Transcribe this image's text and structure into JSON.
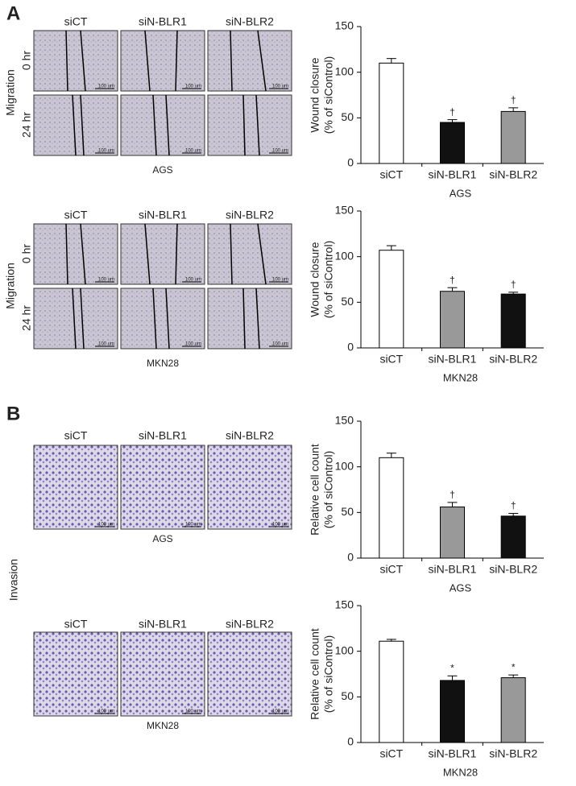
{
  "figure": {
    "panel_a": "A",
    "panel_b": "B",
    "conditions": [
      "siCT",
      "siN-BLR1",
      "siN-BLR2"
    ],
    "migration": "Migration",
    "times": [
      "0 hr",
      "24 hr"
    ],
    "invasion": "Invasion",
    "cell_lines": [
      "AGS",
      "MKN28"
    ],
    "scale_bar": "100 um"
  },
  "chart_data": [
    {
      "type": "bar",
      "y_label": [
        "Wound closure",
        "(% of siControl)"
      ],
      "x_label": "AGS",
      "categories": [
        "siCT",
        "siN-BLR1",
        "siN-BLR2"
      ],
      "values": [
        110,
        45,
        57
      ],
      "errors": [
        5,
        3,
        4
      ],
      "colors": [
        "#ffffff",
        "#111111",
        "#999999"
      ],
      "annotations": [
        null,
        "†",
        "†"
      ],
      "ylim": [
        0,
        150
      ],
      "yticks": [
        0,
        50,
        100,
        150
      ]
    },
    {
      "type": "bar",
      "y_label": [
        "Wound closure",
        "(% of siControl)"
      ],
      "x_label": "MKN28",
      "categories": [
        "siCT",
        "siN-BLR1",
        "siN-BLR2"
      ],
      "values": [
        107,
        62,
        59
      ],
      "errors": [
        5,
        4,
        2
      ],
      "colors": [
        "#ffffff",
        "#999999",
        "#111111"
      ],
      "annotations": [
        null,
        "†",
        "†"
      ],
      "ylim": [
        0,
        150
      ],
      "yticks": [
        0,
        50,
        100,
        150
      ]
    },
    {
      "type": "bar",
      "y_label": [
        "Relative cell count",
        "(% of siControl)"
      ],
      "x_label": "AGS",
      "categories": [
        "siCT",
        "siN-BLR1",
        "siN-BLR2"
      ],
      "values": [
        110,
        56,
        46
      ],
      "errors": [
        5,
        5,
        3
      ],
      "colors": [
        "#ffffff",
        "#999999",
        "#111111"
      ],
      "annotations": [
        null,
        "†",
        "†"
      ],
      "ylim": [
        0,
        150
      ],
      "yticks": [
        0,
        50,
        100,
        150
      ]
    },
    {
      "type": "bar",
      "y_label": [
        "Relative cell count",
        "(% of siControl)"
      ],
      "x_label": "MKN28",
      "categories": [
        "siCT",
        "siN-BLR1",
        "siN-BLR2"
      ],
      "values": [
        111,
        68,
        71
      ],
      "errors": [
        2,
        5,
        3
      ],
      "colors": [
        "#ffffff",
        "#111111",
        "#999999"
      ],
      "annotations": [
        null,
        "*",
        "*"
      ],
      "ylim": [
        0,
        150
      ],
      "yticks": [
        0,
        50,
        100,
        150
      ]
    }
  ]
}
